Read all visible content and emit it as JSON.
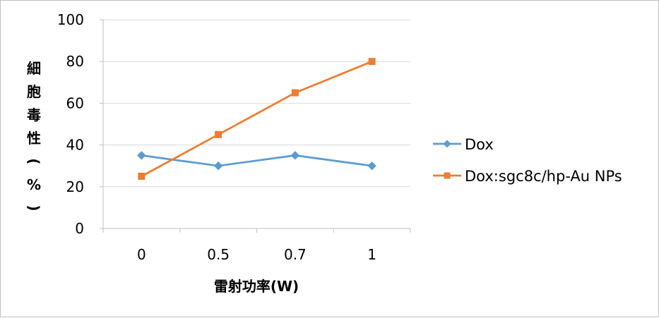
{
  "chart_data": {
    "type": "line",
    "title": "",
    "xlabel": "雷射功率(W)",
    "ylabel": "細胞毒性(%)",
    "categories": [
      "0",
      "0.5",
      "0.7",
      "1"
    ],
    "ylim": [
      0,
      100
    ],
    "yticks": [
      "0",
      "20",
      "40",
      "60",
      "80",
      "100"
    ],
    "grid": true,
    "legend_position": "right",
    "series": [
      {
        "name": "Dox",
        "values": [
          35,
          30,
          35,
          30
        ],
        "color": "#5B9BD5",
        "marker": "diamond"
      },
      {
        "name": "Dox:sgc8c/hp-Au NPs",
        "values": [
          25,
          45,
          65,
          80
        ],
        "color": "#ED7D31",
        "marker": "square"
      }
    ]
  }
}
